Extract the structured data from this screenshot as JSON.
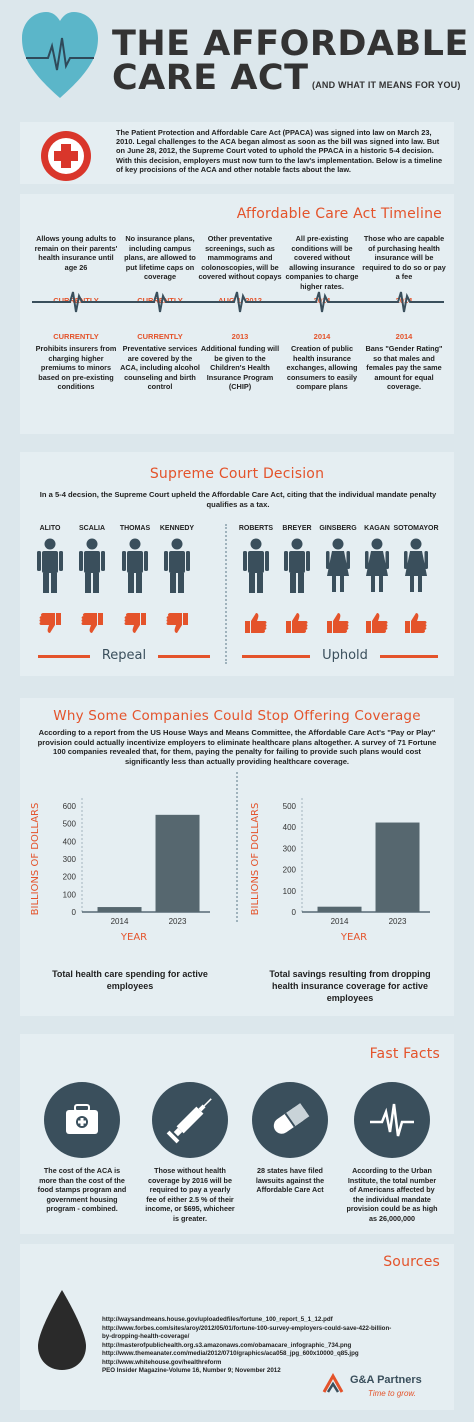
{
  "header": {
    "title_line1": "THE AFFORDABLE",
    "title_line2": "CARE ACT",
    "subtitle": "(AND WHAT IT MEANS FOR YOU)"
  },
  "intro": {
    "text": "The Patient Protection and Affordable Care Act (PPACA) was signed into law on March 23, 2010. Legal challenges to the ACA began almost as soon as the bill was signed into law. But on June 28, 2012, the Supreme Court voted to uphold the PPACA in a historic 5-4 decision. With this decision, employers must now turn to the law's implementation. Below is a timeline of key procisions of the ACA and other notable facts about the law."
  },
  "timeline": {
    "title": "Affordable Care Act Timeline",
    "top": [
      {
        "text": "Allows young adults to remain on their parents' health insurance until age 26",
        "label": "CURRENTLY"
      },
      {
        "text": "No insurance plans, including campus plans, are allowed to put lifetime caps on coverage",
        "label": "CURRENTLY"
      },
      {
        "text": "Other preventative screenings, such as mammograms and colonoscopies, will be covered without copays",
        "label": "AUG 1, 2012"
      },
      {
        "text": "All pre-existing conditions will be covered without allowing insurance companies to charge higher rates.",
        "label": "2014"
      },
      {
        "text": "Those who are capable of purchasing health insurance will be required to do so or pay a fee",
        "label": "2014"
      }
    ],
    "bottom": [
      {
        "label": "CURRENTLY",
        "text": "Prohibits insurers from charging higher premiums to minors based on pre-existing conditions"
      },
      {
        "label": "CURRENTLY",
        "text": "Preventative services are covered by the ACA, including alcohol counseling and birth control"
      },
      {
        "label": "2013",
        "text": "Additional funding will be given to the Children's Health Insurance Program (CHIP)"
      },
      {
        "label": "2014",
        "text": "Creation of public health insurance exchanges, allowing consumers to easily compare plans"
      },
      {
        "label": "2014",
        "text": "Bans \"Gender Rating\" so that males and females pay the same amount for equal coverage."
      }
    ]
  },
  "court": {
    "title": "Supreme Court Decision",
    "text": "In a 5-4 decsion, the Supreme Court upheld the Affordable Care Act, citing that the individual mandate penalty qualifies as a tax.",
    "repeal_label": "Repeal",
    "uphold_label": "Uphold",
    "repeal": [
      "ALITO",
      "SCALIA",
      "THOMAS",
      "KENNEDY"
    ],
    "uphold": [
      "ROBERTS",
      "BREYER",
      "GINSBERG",
      "KAGAN",
      "SOTOMAYOR"
    ]
  },
  "coverage": {
    "title": "Why  Some Companies Could Stop Offering Coverage",
    "text": "According to a report from the US House Ways and Means Committee, the Affordable Care Act's \"Pay or Play\" provision could actually incentivize employers to eliminate healthcare plans altogether. A survey of 71 Fortune 100 companies revealed that, for them,  paying the penalty for failing to provide such plans would cost significantly less than actually providing healthcare coverage."
  },
  "chart_data": [
    {
      "type": "bar",
      "categories": [
        "2014",
        "2023"
      ],
      "values": [
        28,
        550
      ],
      "xlabel": "YEAR",
      "ylabel": "BILLIONS OF DOLLARS",
      "ylim": [
        0,
        600
      ],
      "yticks": [
        "600",
        "500",
        "400",
        "300",
        "200",
        "100",
        "0"
      ],
      "caption": "Total health care spending for active employees"
    },
    {
      "type": "bar",
      "categories": [
        "2014",
        "2023"
      ],
      "values": [
        25,
        422
      ],
      "xlabel": "YEAR",
      "ylabel": "BILLIONS OF DOLLARS",
      "ylim": [
        0,
        500
      ],
      "yticks": [
        "500",
        "400",
        "300",
        "200",
        "100",
        "0"
      ],
      "caption": "Total savings resulting from dropping health insurance coverage for active employees"
    }
  ],
  "facts": {
    "title": "Fast Facts",
    "items": [
      {
        "icon": "medical-bag-icon",
        "text": "The cost of the ACA is more than the cost of the food stamps program and government housing program - combined."
      },
      {
        "icon": "syringe-icon",
        "text": "Those without health coverage by 2016 will be required to pay a yearly fee of either 2.5 % of their income, or $695, whicheer is greater."
      },
      {
        "icon": "pill-icon",
        "text": "28 states have filed lawsuits against the Affordable Care Act"
      },
      {
        "icon": "heartbeat-icon",
        "text": "According to the Urban Institute, the total number of Americans affected by the individual mandate provision could be as high as 26,000,000"
      }
    ]
  },
  "sources": {
    "title": "Sources",
    "lines": [
      "http://waysandmeans.house.gov/uploadedfiles/fortune_100_report_5_1_12.pdf",
      "http://www.forbes.com/sites/aroy/2012/05/01/fortune-100-survey-employers-could-save-422-billion-",
      "by-dropping-health-coverage/",
      "http://masterofpublichealth.org.s3.amazonaws.com/obamacare_infographic_734.png",
      "http://www.themeanater.com/media/2012/0710/graphics/aca058_jpg_600x10000_q85.jpg",
      "http://www.whitehouse.gov/healthreform",
      "PEO Insider Magazine-Volume 16, Number 9; November 2012"
    ],
    "brand": "G&A Partners",
    "tagline": "Time to grow.",
    "colors": {
      "accent": "#e4532b",
      "dark": "#3a4f5c",
      "teal": "#5bb6c9"
    }
  }
}
